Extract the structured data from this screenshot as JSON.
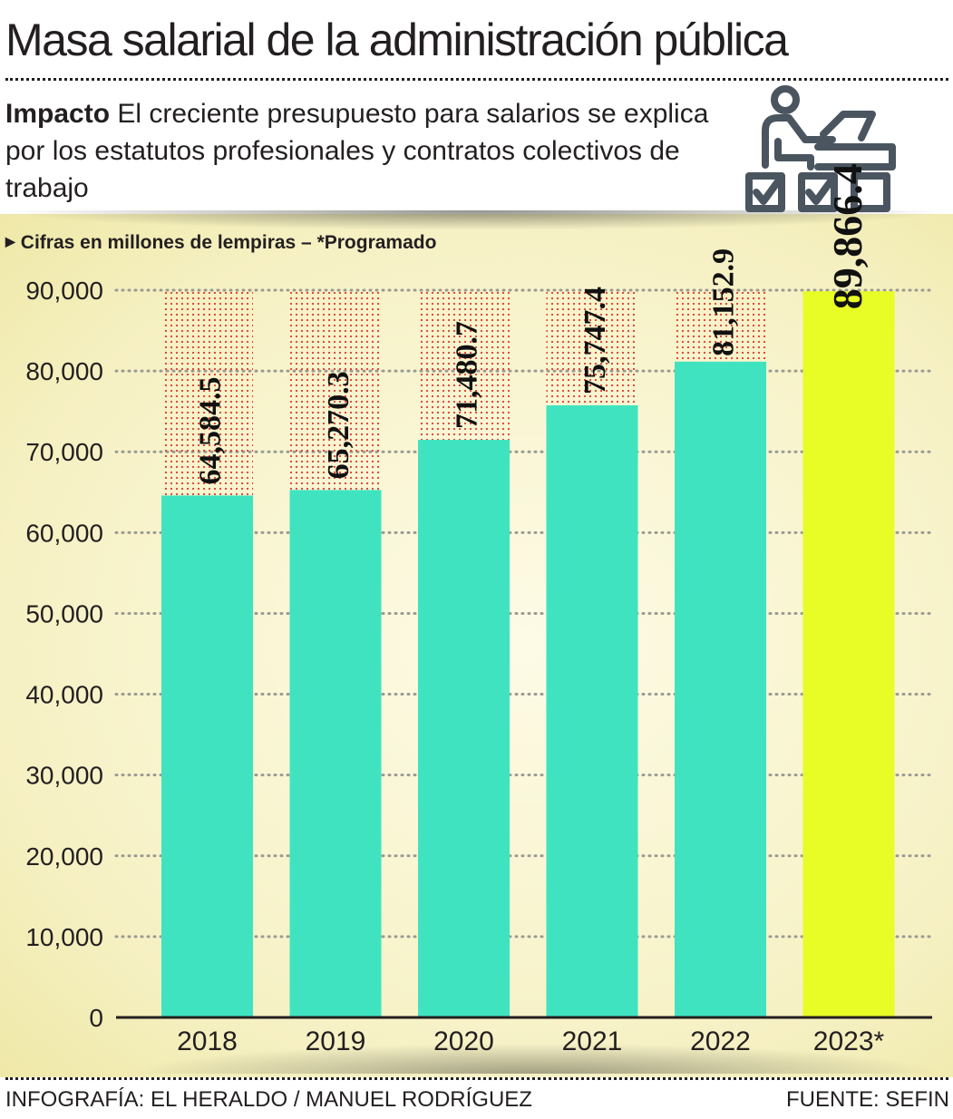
{
  "header": {
    "title": "Masa salarial de la administración pública",
    "subtitle_lead": "Impacto",
    "subtitle_text": "El creciente presupuesto para salarios se explica por los estatutos profesionales y contratos colectivos de trabajo",
    "icon": "worker-at-desk-checklist-icon"
  },
  "note": "Cifras en millones de lempiras – *Programado",
  "footer": {
    "credit": "INFOGRAFÍA: EL HERALDO / MANUEL RODRÍGUEZ",
    "source": "FUENTE: SEFIN"
  },
  "colors": {
    "bar": "#40e3c0",
    "highlight_bar": "#e8fc26",
    "dots": "#e0392f",
    "text": "#231f20",
    "background": "#f6f1c4"
  },
  "chart_data": {
    "type": "bar",
    "categories": [
      "2018",
      "2019",
      "2020",
      "2021",
      "2022",
      "2023*"
    ],
    "values": [
      64584.5,
      65270.3,
      71480.7,
      75747.4,
      81152.9,
      89866.4
    ],
    "value_labels": [
      "64,584.5",
      "65,270.3",
      "71,480.7",
      "75,747.4",
      "81,152.9",
      "89,866.4"
    ],
    "highlight_index": 5,
    "yticks": [
      0,
      10000,
      20000,
      30000,
      40000,
      50000,
      60000,
      70000,
      80000,
      90000
    ],
    "ytick_labels": [
      "0",
      "10,000",
      "20,000",
      "30,000",
      "40,000",
      "50,000",
      "60,000",
      "70,000",
      "80,000",
      "90,000"
    ],
    "ylim": [
      0,
      90000
    ],
    "grid": true,
    "title": "",
    "xlabel": "",
    "ylabel": ""
  }
}
